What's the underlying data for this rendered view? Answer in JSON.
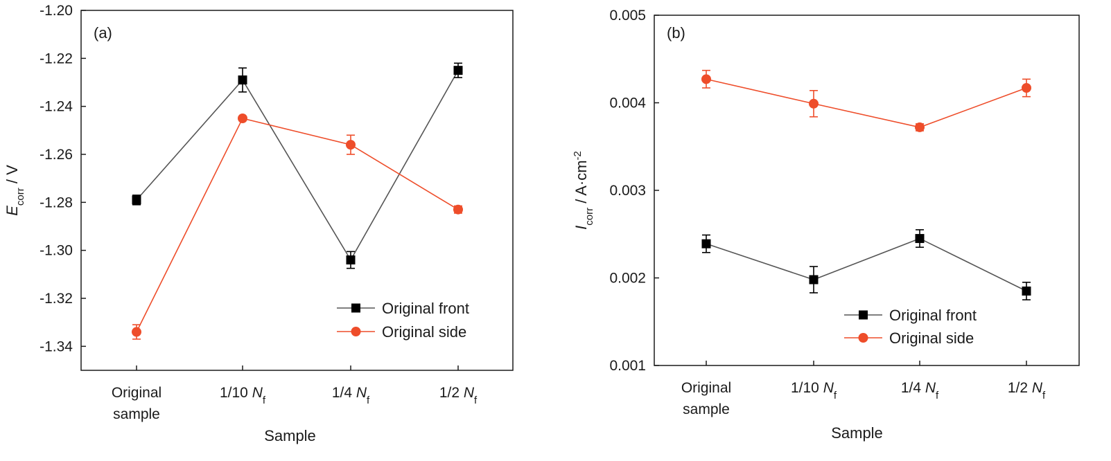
{
  "chart_data": [
    {
      "type": "line",
      "panel_label": "(a)",
      "categories": [
        {
          "lines": [
            {
              "text": "Original"
            },
            {
              "text": "sample"
            }
          ]
        },
        {
          "lines": [
            {
              "text": "1/10 ",
              "sym": "N",
              "sub": "f"
            }
          ]
        },
        {
          "lines": [
            {
              "text": "1/4 ",
              "sym": "N",
              "sub": "f"
            }
          ]
        },
        {
          "lines": [
            {
              "text": "1/2 ",
              "sym": "N",
              "sub": "f"
            }
          ]
        }
      ],
      "xlabel": "Sample",
      "ylabel": {
        "sym": "E",
        "sub": "corr",
        "rest": " / V"
      },
      "ylim": [
        -1.35,
        -1.2
      ],
      "yticks": [
        -1.2,
        -1.22,
        -1.24,
        -1.26,
        -1.28,
        -1.3,
        -1.32,
        -1.34
      ],
      "ytick_labels": [
        "-1.20",
        "-1.22",
        "-1.24",
        "-1.26",
        "-1.28",
        "-1.30",
        "-1.32",
        "-1.34"
      ],
      "grid": false,
      "legend_position": "lower-right",
      "series": [
        {
          "name": "Original front",
          "marker": "square",
          "color": "#000000",
          "line_color": "#555555",
          "values": [
            -1.279,
            -1.229,
            -1.304,
            -1.225
          ],
          "errors": [
            0.002,
            0.005,
            0.0035,
            0.003
          ]
        },
        {
          "name": "Original side",
          "marker": "circle",
          "color": "#ee4d2a",
          "line_color": "#ee4d2a",
          "values": [
            -1.334,
            -1.245,
            -1.256,
            -1.283
          ],
          "errors": [
            0.003,
            0.0,
            0.004,
            0.0015
          ]
        }
      ]
    },
    {
      "type": "line",
      "panel_label": "(b)",
      "categories": [
        {
          "lines": [
            {
              "text": "Original"
            },
            {
              "text": "sample"
            }
          ]
        },
        {
          "lines": [
            {
              "text": "1/10 ",
              "sym": "N",
              "sub": "f"
            }
          ]
        },
        {
          "lines": [
            {
              "text": "1/4 ",
              "sym": "N",
              "sub": "f"
            }
          ]
        },
        {
          "lines": [
            {
              "text": "1/2 ",
              "sym": "N",
              "sub": "f"
            }
          ]
        }
      ],
      "xlabel": "Sample",
      "ylabel": {
        "sym": "I",
        "sub": "corr",
        "rest": " / A·cm",
        "sup": "-2"
      },
      "ylim": [
        0.001,
        0.005
      ],
      "yticks": [
        0.001,
        0.002,
        0.003,
        0.004,
        0.005
      ],
      "ytick_labels": [
        "0.001",
        "0.002",
        "0.003",
        "0.004",
        "0.005"
      ],
      "grid": false,
      "legend_position": "lower-right",
      "series": [
        {
          "name": "Original front",
          "marker": "square",
          "color": "#000000",
          "line_color": "#555555",
          "values": [
            0.00239,
            0.00198,
            0.00245,
            0.00185
          ],
          "errors": [
            0.0001,
            0.00015,
            0.0001,
            0.0001
          ]
        },
        {
          "name": "Original side",
          "marker": "circle",
          "color": "#ee4d2a",
          "line_color": "#ee4d2a",
          "values": [
            0.00427,
            0.00399,
            0.00372,
            0.00417
          ],
          "errors": [
            0.0001,
            0.00015,
            4e-05,
            0.0001
          ]
        }
      ]
    }
  ]
}
